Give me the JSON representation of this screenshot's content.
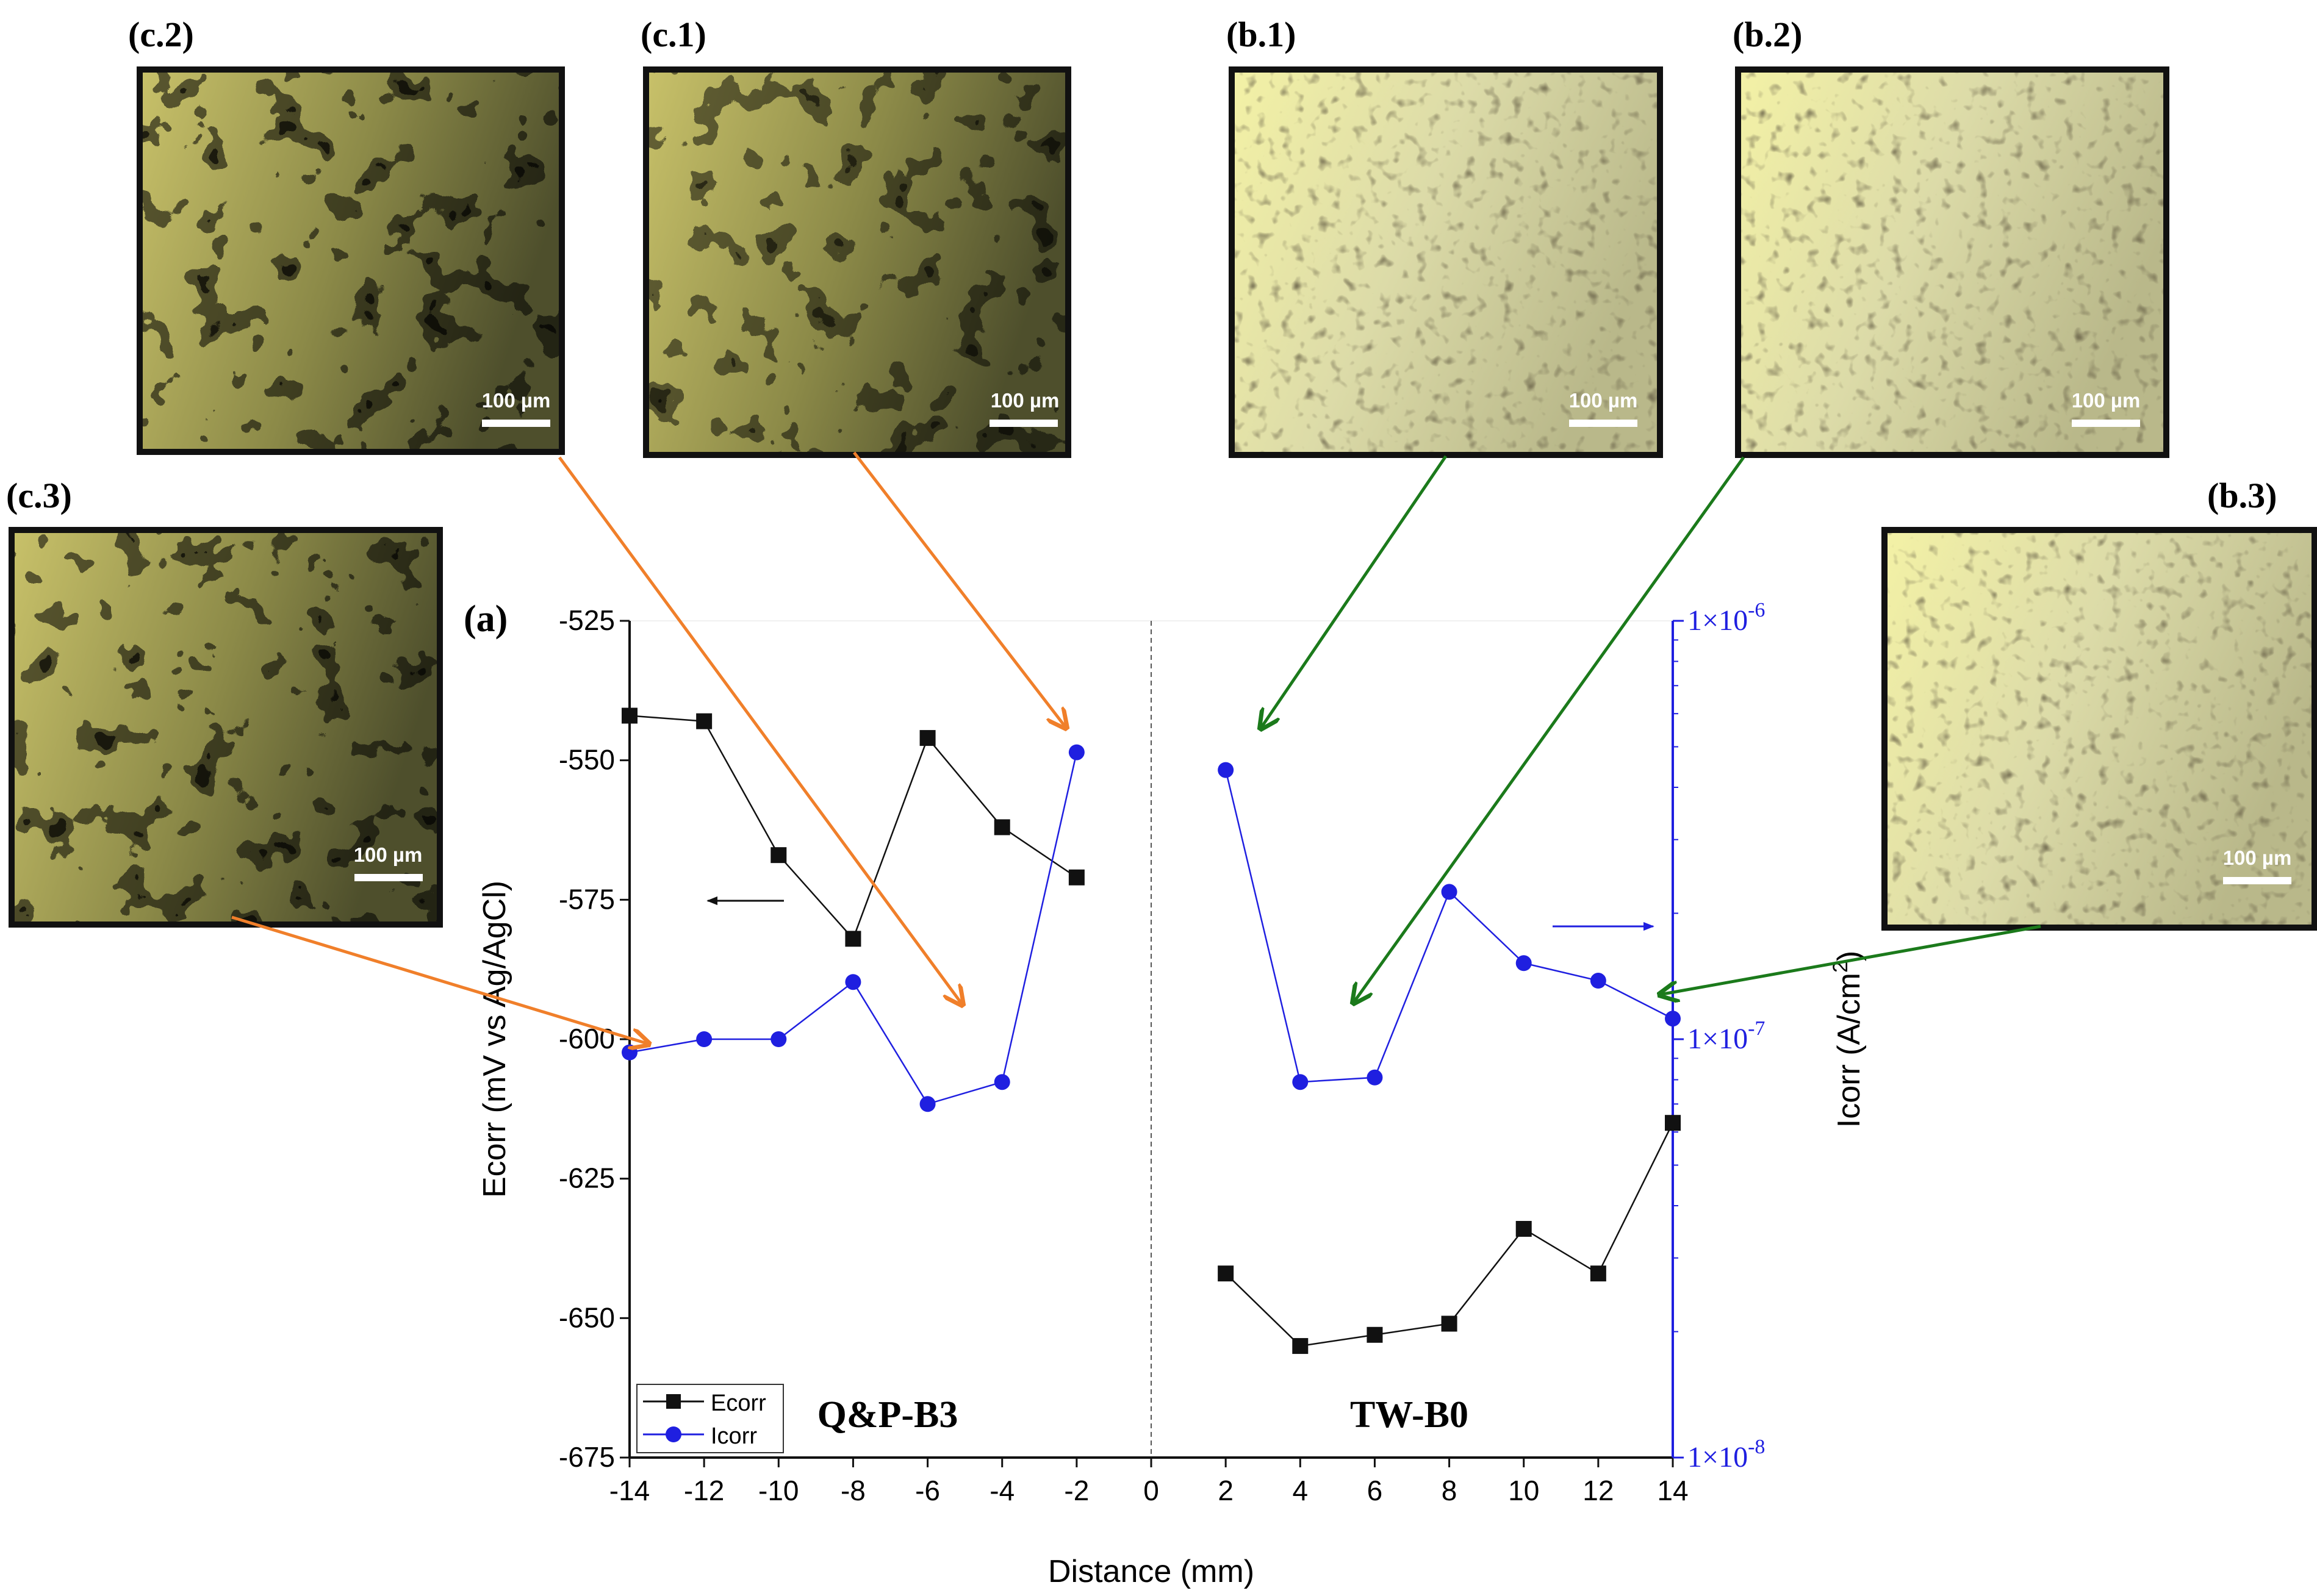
{
  "chart_data": {
    "type": "line",
    "panel_label": "(a)",
    "xlabel": "Distance (mm)",
    "ylabel_left": "Ecorr (mV vs Ag/AgCl)",
    "ylabel_right_main": "Icorr (A/cm",
    "ylabel_right_sup": "2",
    "ylabel_right_end": ")",
    "xlim": [
      -14,
      14
    ],
    "ylim_left": [
      -675,
      -525
    ],
    "ylim_right": [
      1e-08,
      1e-06
    ],
    "x_ticks": [
      "-14",
      "-12",
      "-10",
      "-8",
      "-6",
      "-4",
      "-2",
      "0",
      "2",
      "4",
      "6",
      "8",
      "10",
      "12",
      "14"
    ],
    "y_ticks_left": [
      "-525",
      "-550",
      "-575",
      "-600",
      "-625",
      "-650",
      "-675"
    ],
    "y_ticks_right": [
      {
        "base": "1×10",
        "exp": "-6"
      },
      {
        "base": "1×10",
        "exp": "-7"
      },
      {
        "base": "1×10",
        "exp": "-8"
      }
    ],
    "regions": [
      "Q&P-B3",
      "TW-B0"
    ],
    "legend": [
      "Ecorr",
      "Icorr"
    ],
    "series": [
      {
        "name": "Ecorr",
        "axis": "left",
        "color": "#111111",
        "marker": "square",
        "segments": [
          {
            "x": [
              -14,
              -12,
              -10,
              -8,
              -6,
              -4,
              -2
            ],
            "y": [
              -542,
              -543,
              -567,
              -582,
              -546,
              -562,
              -571
            ]
          },
          {
            "x": [
              2,
              4,
              6,
              8,
              10,
              12,
              14
            ],
            "y": [
              -642,
              -655,
              -653,
              -651,
              -634,
              -642,
              -615
            ]
          }
        ]
      },
      {
        "name": "Icorr",
        "axis": "right",
        "color": "#1f1fe0",
        "marker": "circle",
        "segments": [
          {
            "x": [
              -14,
              -12,
              -10,
              -8,
              -6,
              -4,
              -2
            ],
            "y": [
              9.3e-08,
              1e-07,
              1e-07,
              1.37e-07,
              7e-08,
              7.9e-08,
              4.85e-07
            ]
          },
          {
            "x": [
              2,
              4,
              6,
              8,
              10,
              12,
              14
            ],
            "y": [
              4.4e-07,
              7.9e-08,
              8.1e-08,
              2.25e-07,
              1.52e-07,
              1.38e-07,
              1.12e-07
            ]
          }
        ]
      }
    ]
  },
  "micrographs": [
    {
      "label": "(c.2)",
      "scale": "100 µm"
    },
    {
      "label": "(c.1)",
      "scale": "100 µm"
    },
    {
      "label": "(b.1)",
      "scale": "100 µm"
    },
    {
      "label": "(b.2)",
      "scale": "100 µm"
    },
    {
      "label": "(c.3)",
      "scale": "100 µm"
    },
    {
      "label": "(b.3)",
      "scale": "100 µm"
    }
  ],
  "colors": {
    "arrow_orange": "#f07f2a",
    "arrow_green": "#1b7a1b",
    "right_axis": "#1f1fe0",
    "image_frame": "#111111"
  }
}
